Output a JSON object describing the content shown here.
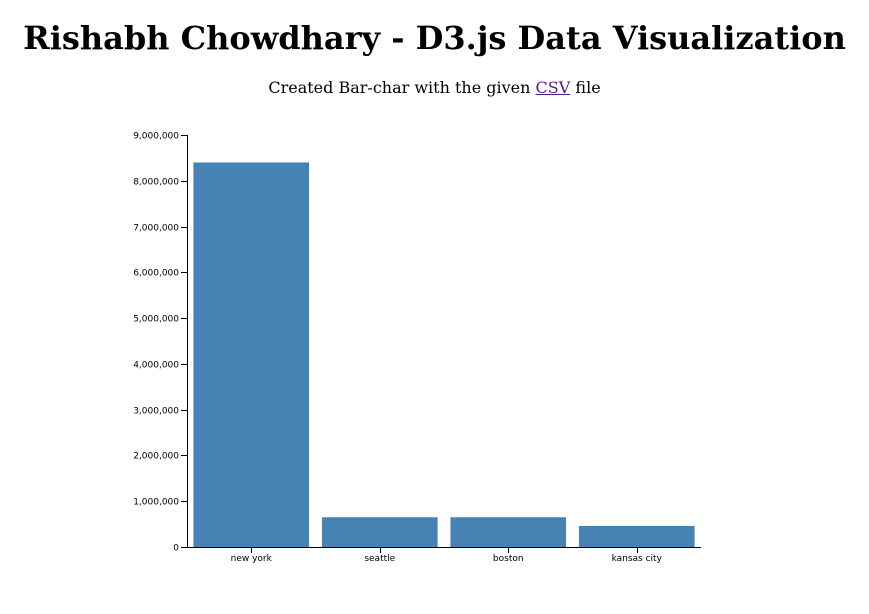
{
  "header": {
    "title": "Rishabh Chowdhary - D3.js Data Visualization",
    "subtitle_before": "Created Bar-char with the given ",
    "link_text": "CSV",
    "subtitle_after": " file"
  },
  "colors": {
    "bar": "#4682b4",
    "link": "#551a8b"
  },
  "chart_data": {
    "type": "bar",
    "categories": [
      "new york",
      "seattle",
      "boston",
      "kansas city"
    ],
    "values": [
      8400000,
      650000,
      650000,
      460000
    ],
    "title": "",
    "xlabel": "",
    "ylabel": "",
    "ylim": [
      0,
      9000000
    ],
    "yticks": [
      0,
      1000000,
      2000000,
      3000000,
      4000000,
      5000000,
      6000000,
      7000000,
      8000000,
      9000000
    ],
    "ytick_labels": [
      "0",
      "1,000,000",
      "2,000,000",
      "3,000,000",
      "4,000,000",
      "5,000,000",
      "6,000,000",
      "7,000,000",
      "8,000,000",
      "9,000,000"
    ],
    "grid": false,
    "legend": "none"
  }
}
